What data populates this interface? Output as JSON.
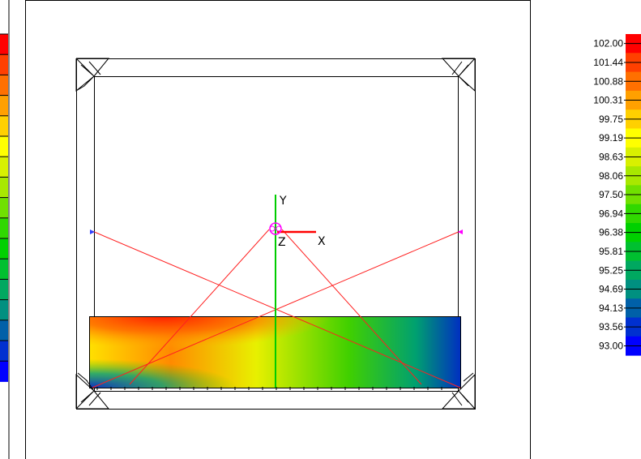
{
  "axes": {
    "y_label": "Y",
    "x_label": "X",
    "z_label": "Z"
  },
  "colors": {
    "frame": "#000000",
    "cable": "#ff2020",
    "y_axis": "#00cc00",
    "x_axis": "#ff0000",
    "node_marker": "#ff00ff",
    "background": "#ffffff"
  },
  "left_scale_colors": [
    "#ff0000",
    "#ff4000",
    "#ff7000",
    "#ffa000",
    "#ffd000",
    "#ffff00",
    "#d8f000",
    "#a8e800",
    "#70e000",
    "#30d800",
    "#00d000",
    "#00c030",
    "#00a860",
    "#009080",
    "#0060a8",
    "#0030d0",
    "#0000ff"
  ],
  "legend": {
    "values": [
      "102.00",
      "101.44",
      "100.88",
      "100.31",
      "99.75",
      "99.19",
      "98.63",
      "98.06",
      "97.50",
      "96.94",
      "96.38",
      "95.81",
      "95.25",
      "94.69",
      "94.13",
      "93.56",
      "93.00"
    ],
    "colors": [
      "#ff0000",
      "#ff4000",
      "#ff7000",
      "#ffa000",
      "#ffd000",
      "#ffff00",
      "#d8f000",
      "#a8e800",
      "#70e000",
      "#30d800",
      "#00d000",
      "#00c030",
      "#00a860",
      "#009080",
      "#0060a8",
      "#0030d0",
      "#0000ff"
    ]
  }
}
